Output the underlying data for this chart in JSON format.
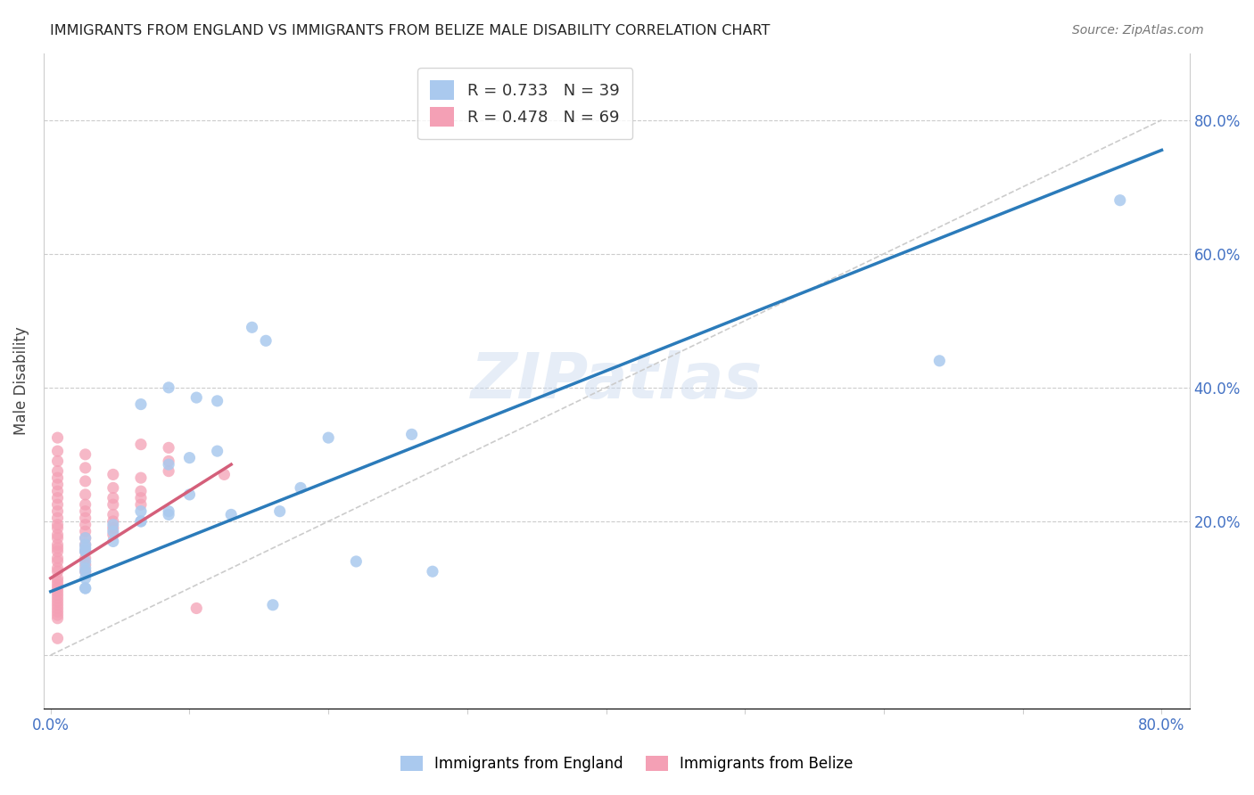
{
  "title": "IMMIGRANTS FROM ENGLAND VS IMMIGRANTS FROM BELIZE MALE DISABILITY CORRELATION CHART",
  "source": "Source: ZipAtlas.com",
  "ylabel": "Male Disability",
  "xlim": [
    -0.005,
    0.82
  ],
  "ylim": [
    -0.08,
    0.9
  ],
  "england_color": "#aac9ee",
  "belize_color": "#f4a0b5",
  "england_line_color": "#2b7bba",
  "belize_line_color": "#d45f7a",
  "diag_color": "#cccccc",
  "england_R": 0.733,
  "england_N": 39,
  "belize_R": 0.478,
  "belize_N": 69,
  "watermark": "ZIPatlas",
  "england_points": [
    [
      0.77,
      0.68
    ],
    [
      0.64,
      0.44
    ],
    [
      0.145,
      0.49
    ],
    [
      0.155,
      0.47
    ],
    [
      0.085,
      0.4
    ],
    [
      0.065,
      0.375
    ],
    [
      0.105,
      0.385
    ],
    [
      0.12,
      0.38
    ],
    [
      0.1,
      0.295
    ],
    [
      0.085,
      0.215
    ],
    [
      0.085,
      0.21
    ],
    [
      0.065,
      0.2
    ],
    [
      0.065,
      0.2
    ],
    [
      0.045,
      0.195
    ],
    [
      0.045,
      0.185
    ],
    [
      0.045,
      0.17
    ],
    [
      0.025,
      0.175
    ],
    [
      0.025,
      0.165
    ],
    [
      0.025,
      0.16
    ],
    [
      0.025,
      0.155
    ],
    [
      0.025,
      0.155
    ],
    [
      0.025,
      0.14
    ],
    [
      0.025,
      0.13
    ],
    [
      0.025,
      0.125
    ],
    [
      0.025,
      0.115
    ],
    [
      0.025,
      0.1
    ],
    [
      0.025,
      0.1
    ],
    [
      0.2,
      0.325
    ],
    [
      0.22,
      0.14
    ],
    [
      0.26,
      0.33
    ],
    [
      0.275,
      0.125
    ],
    [
      0.18,
      0.25
    ],
    [
      0.165,
      0.215
    ],
    [
      0.13,
      0.21
    ],
    [
      0.085,
      0.285
    ],
    [
      0.065,
      0.215
    ],
    [
      0.16,
      0.075
    ],
    [
      0.12,
      0.305
    ],
    [
      0.1,
      0.24
    ]
  ],
  "belize_points": [
    [
      0.005,
      0.325
    ],
    [
      0.005,
      0.305
    ],
    [
      0.005,
      0.29
    ],
    [
      0.005,
      0.275
    ],
    [
      0.005,
      0.265
    ],
    [
      0.005,
      0.255
    ],
    [
      0.005,
      0.245
    ],
    [
      0.005,
      0.235
    ],
    [
      0.005,
      0.225
    ],
    [
      0.005,
      0.215
    ],
    [
      0.005,
      0.205
    ],
    [
      0.005,
      0.195
    ],
    [
      0.005,
      0.19
    ],
    [
      0.005,
      0.18
    ],
    [
      0.005,
      0.175
    ],
    [
      0.005,
      0.165
    ],
    [
      0.005,
      0.16
    ],
    [
      0.005,
      0.155
    ],
    [
      0.005,
      0.145
    ],
    [
      0.005,
      0.14
    ],
    [
      0.005,
      0.13
    ],
    [
      0.005,
      0.125
    ],
    [
      0.005,
      0.115
    ],
    [
      0.005,
      0.11
    ],
    [
      0.005,
      0.105
    ],
    [
      0.005,
      0.1
    ],
    [
      0.005,
      0.095
    ],
    [
      0.005,
      0.09
    ],
    [
      0.005,
      0.085
    ],
    [
      0.005,
      0.08
    ],
    [
      0.005,
      0.075
    ],
    [
      0.005,
      0.07
    ],
    [
      0.005,
      0.065
    ],
    [
      0.005,
      0.06
    ],
    [
      0.005,
      0.055
    ],
    [
      0.005,
      0.025
    ],
    [
      0.025,
      0.3
    ],
    [
      0.025,
      0.28
    ],
    [
      0.025,
      0.26
    ],
    [
      0.025,
      0.24
    ],
    [
      0.025,
      0.225
    ],
    [
      0.025,
      0.215
    ],
    [
      0.025,
      0.205
    ],
    [
      0.025,
      0.195
    ],
    [
      0.025,
      0.185
    ],
    [
      0.025,
      0.175
    ],
    [
      0.025,
      0.165
    ],
    [
      0.025,
      0.155
    ],
    [
      0.025,
      0.145
    ],
    [
      0.025,
      0.135
    ],
    [
      0.025,
      0.125
    ],
    [
      0.045,
      0.27
    ],
    [
      0.045,
      0.25
    ],
    [
      0.045,
      0.235
    ],
    [
      0.045,
      0.225
    ],
    [
      0.045,
      0.21
    ],
    [
      0.045,
      0.2
    ],
    [
      0.045,
      0.19
    ],
    [
      0.045,
      0.18
    ],
    [
      0.065,
      0.315
    ],
    [
      0.065,
      0.265
    ],
    [
      0.065,
      0.245
    ],
    [
      0.065,
      0.235
    ],
    [
      0.065,
      0.225
    ],
    [
      0.085,
      0.31
    ],
    [
      0.085,
      0.29
    ],
    [
      0.085,
      0.275
    ],
    [
      0.105,
      0.07
    ],
    [
      0.125,
      0.27
    ]
  ],
  "eng_line_x": [
    0.0,
    0.8
  ],
  "eng_line_y": [
    0.095,
    0.755
  ],
  "bel_line_x": [
    0.0,
    0.13
  ],
  "bel_line_y": [
    0.115,
    0.285
  ],
  "diag_line_x": [
    0.0,
    0.8
  ],
  "diag_line_y": [
    0.0,
    0.8
  ]
}
